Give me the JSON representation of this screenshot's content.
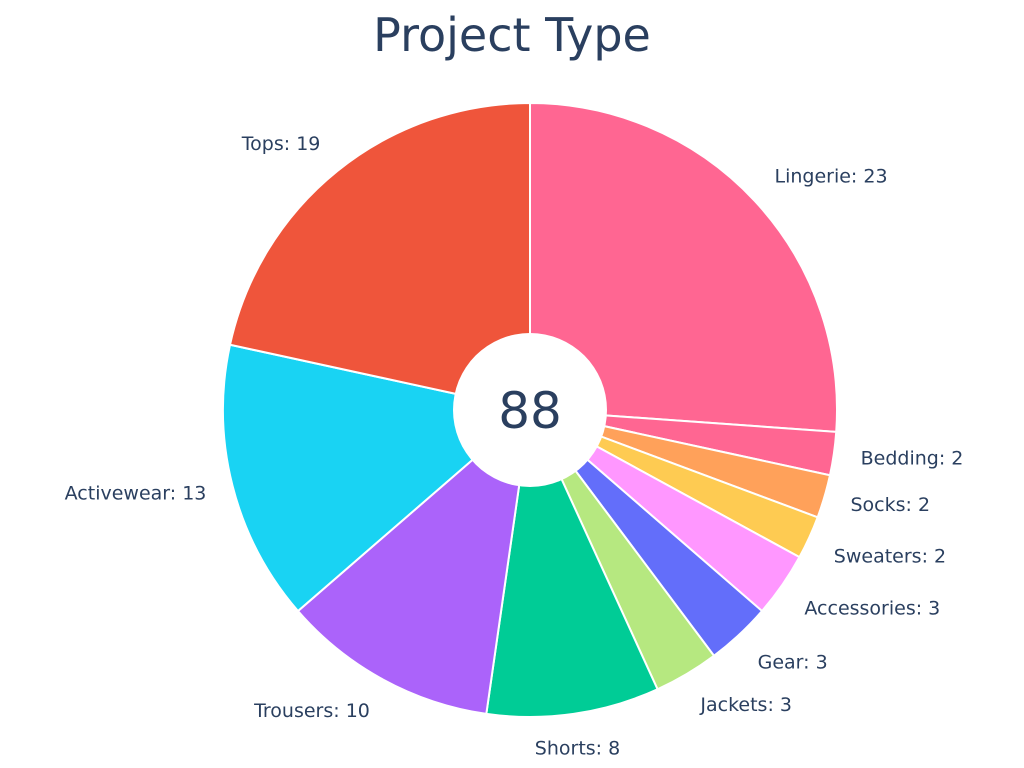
{
  "chart_data": {
    "type": "pie",
    "title": "Project Type",
    "center_label": "88",
    "hole": true,
    "direction": "clockwise",
    "start": "top",
    "slices": [
      {
        "label": "Lingerie",
        "value": 23,
        "color": "#ff6692"
      },
      {
        "label": "Bedding",
        "value": 2,
        "color": "#ff6692"
      },
      {
        "label": "Socks",
        "value": 2,
        "color": "#ffa15a"
      },
      {
        "label": "Sweaters",
        "value": 2,
        "color": "#fecb52"
      },
      {
        "label": "Accessories",
        "value": 3,
        "color": "#ff97ff"
      },
      {
        "label": "Gear",
        "value": 3,
        "color": "#636efa"
      },
      {
        "label": "Jackets",
        "value": 3,
        "color": "#b6e880"
      },
      {
        "label": "Shorts",
        "value": 8,
        "color": "#00cc96"
      },
      {
        "label": "Trousers",
        "value": 10,
        "color": "#ab63fa"
      },
      {
        "label": "Activewear",
        "value": 13,
        "color": "#19d3f3"
      },
      {
        "label": "Tops",
        "value": 19,
        "color": "#ef553b"
      }
    ]
  }
}
